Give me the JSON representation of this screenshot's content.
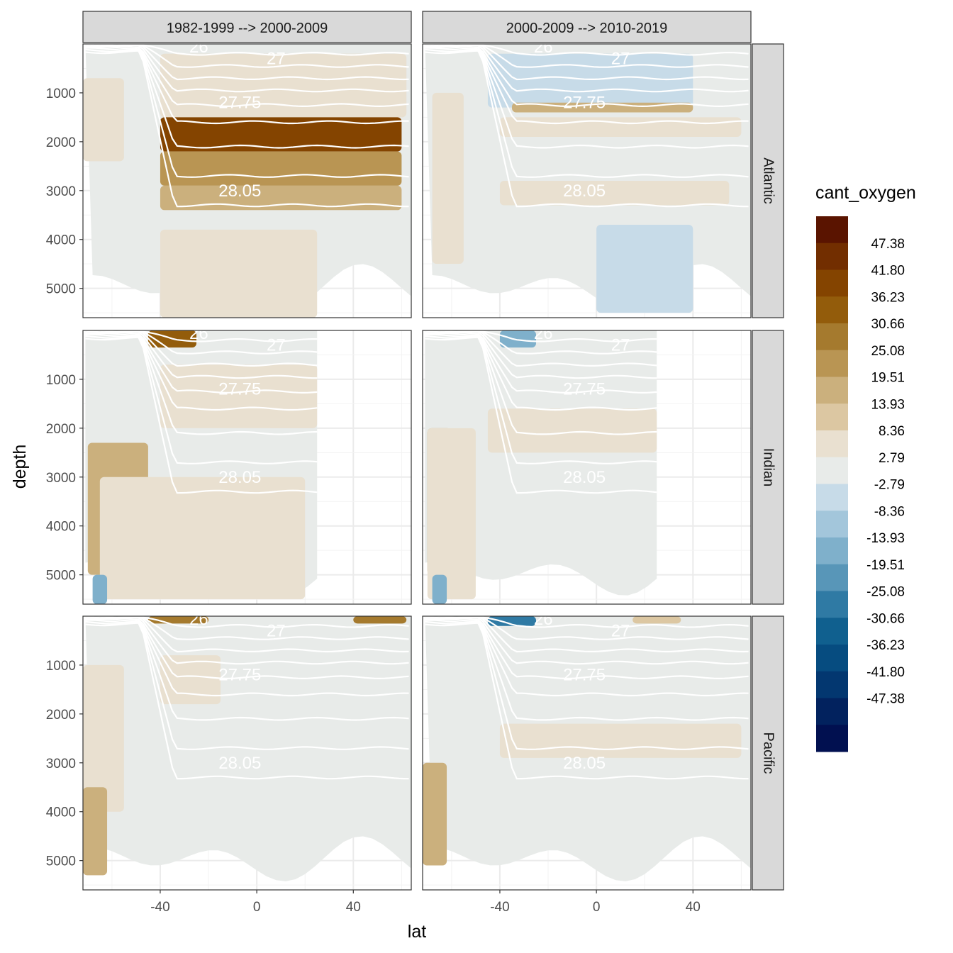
{
  "chart_data": {
    "type": "heatmap",
    "subtype": "faceted filled-contour sections with isopycnal contour lines",
    "xlabel": "lat",
    "ylabel": "depth",
    "xlim": [
      -72,
      64
    ],
    "ylim": [
      5600,
      0
    ],
    "y_reversed": true,
    "x_ticks": [
      -40,
      0,
      40
    ],
    "x_tick_labels": [
      "-40",
      "0",
      "40"
    ],
    "y_ticks": [
      1000,
      2000,
      3000,
      4000,
      5000
    ],
    "y_tick_labels": [
      "1000",
      "2000",
      "3000",
      "4000",
      "5000"
    ],
    "grid": true,
    "legend_position": "right",
    "facet_columns": [
      "1982-1999 --> 2000-2009",
      "2000-2009 --> 2010-2019"
    ],
    "facet_rows": [
      "Atlantic",
      "Indian",
      "Pacific"
    ],
    "legend": {
      "title": "cant_oxygen",
      "labels": [
        "47.38",
        "41.80",
        "36.23",
        "30.66",
        "25.08",
        "19.51",
        "13.93",
        "8.36",
        "2.79",
        "-2.79",
        "-8.36",
        "-13.93",
        "-19.51",
        "-25.08",
        "-30.66",
        "-36.23",
        "-41.80",
        "-47.38"
      ],
      "colors": [
        "#5a1400",
        "#722e00",
        "#844400",
        "#935c0b",
        "#a57a2e",
        "#b99553",
        "#cbb07d",
        "#dcc7a2",
        "#e9e0d0",
        "#e8ebe9",
        "#c7dbe8",
        "#a3c6db",
        "#7fb0cb",
        "#5896b8",
        "#2f7aa4",
        "#10608f",
        "#064c80",
        "#033770",
        "#02225e",
        "#011050"
      ]
    },
    "contour_levels": [
      26,
      27,
      27.75,
      28.05
    ],
    "contour_labels": [
      "26",
      "27",
      "27.75",
      "28.05"
    ],
    "panels": [
      {
        "ocean": "Atlantic",
        "period": "1982-1999 --> 2000-2009",
        "regions": [
          {
            "level": "8.36",
            "lat": [
              -72,
              -55
            ],
            "depth": [
              700,
              2400
            ]
          },
          {
            "level": "8.36",
            "lat": [
              -40,
              62
            ],
            "depth": [
              200,
              1500
            ]
          },
          {
            "level": "41.80",
            "lat": [
              -40,
              60
            ],
            "depth": [
              1500,
              2200
            ]
          },
          {
            "level": "25.08",
            "lat": [
              -40,
              60
            ],
            "depth": [
              2200,
              2900
            ]
          },
          {
            "level": "19.51",
            "lat": [
              -40,
              60
            ],
            "depth": [
              2900,
              3400
            ]
          },
          {
            "level": "2.79",
            "lat": [
              -50,
              60
            ],
            "depth": [
              3400,
              4200
            ]
          },
          {
            "level": "8.36",
            "lat": [
              -40,
              25
            ],
            "depth": [
              3800,
              5600
            ]
          }
        ]
      },
      {
        "ocean": "Atlantic",
        "period": "2000-2009 --> 2010-2019",
        "regions": [
          {
            "level": "8.36",
            "lat": [
              -68,
              -55
            ],
            "depth": [
              1000,
              4500
            ]
          },
          {
            "level": "-2.79",
            "lat": [
              -45,
              40
            ],
            "depth": [
              200,
              1300
            ]
          },
          {
            "level": "19.51",
            "lat": [
              -35,
              40
            ],
            "depth": [
              1200,
              1400
            ]
          },
          {
            "level": "8.36",
            "lat": [
              -40,
              60
            ],
            "depth": [
              1500,
              1900
            ]
          },
          {
            "level": "8.36",
            "lat": [
              -40,
              55
            ],
            "depth": [
              2800,
              3300
            ]
          },
          {
            "level": "-2.79",
            "lat": [
              0,
              40
            ],
            "depth": [
              3700,
              5500
            ]
          }
        ]
      },
      {
        "ocean": "Indian",
        "period": "1982-1999 --> 2000-2009",
        "regions": [
          {
            "level": "36.23",
            "lat": [
              -45,
              -25
            ],
            "depth": [
              0,
              350
            ]
          },
          {
            "level": "8.36",
            "lat": [
              -40,
              25
            ],
            "depth": [
              700,
              2000
            ]
          },
          {
            "level": "19.51",
            "lat": [
              -70,
              -45
            ],
            "depth": [
              2300,
              5000
            ]
          },
          {
            "level": "8.36",
            "lat": [
              -65,
              20
            ],
            "depth": [
              3000,
              5500
            ]
          },
          {
            "level": "-13.93",
            "lat": [
              -68,
              -62
            ],
            "depth": [
              5000,
              5600
            ]
          }
        ]
      },
      {
        "ocean": "Indian",
        "period": "2000-2009 --> 2010-2019",
        "regions": [
          {
            "level": "-13.93",
            "lat": [
              -40,
              -25
            ],
            "depth": [
              0,
              350
            ]
          },
          {
            "level": "8.36",
            "lat": [
              -45,
              25
            ],
            "depth": [
              1600,
              2500
            ]
          },
          {
            "level": "25.08",
            "lat": [
              -70,
              -60
            ],
            "depth": [
              2000,
              5000
            ]
          },
          {
            "level": "8.36",
            "lat": [
              -70,
              -50
            ],
            "depth": [
              2000,
              5500
            ]
          },
          {
            "level": "-13.93",
            "lat": [
              -68,
              -62
            ],
            "depth": [
              5000,
              5600
            ]
          }
        ]
      },
      {
        "ocean": "Pacific",
        "period": "1982-1999 --> 2000-2009",
        "regions": [
          {
            "level": "30.66",
            "lat": [
              -45,
              -20
            ],
            "depth": [
              0,
              150
            ]
          },
          {
            "level": "30.66",
            "lat": [
              40,
              62
            ],
            "depth": [
              0,
              150
            ]
          },
          {
            "level": "8.36",
            "lat": [
              -40,
              -15
            ],
            "depth": [
              800,
              1800
            ]
          },
          {
            "level": "8.36",
            "lat": [
              -72,
              -55
            ],
            "depth": [
              1000,
              4000
            ]
          },
          {
            "level": "19.51",
            "lat": [
              -72,
              -62
            ],
            "depth": [
              3500,
              5300
            ]
          }
        ]
      },
      {
        "ocean": "Pacific",
        "period": "2000-2009 --> 2010-2019",
        "regions": [
          {
            "level": "-25.08",
            "lat": [
              -45,
              -25
            ],
            "depth": [
              0,
              200
            ]
          },
          {
            "level": "13.93",
            "lat": [
              15,
              35
            ],
            "depth": [
              0,
              150
            ]
          },
          {
            "level": "8.36",
            "lat": [
              -40,
              60
            ],
            "depth": [
              2200,
              2900
            ]
          },
          {
            "level": "19.51",
            "lat": [
              -72,
              -62
            ],
            "depth": [
              3000,
              5100
            ]
          }
        ]
      }
    ]
  }
}
